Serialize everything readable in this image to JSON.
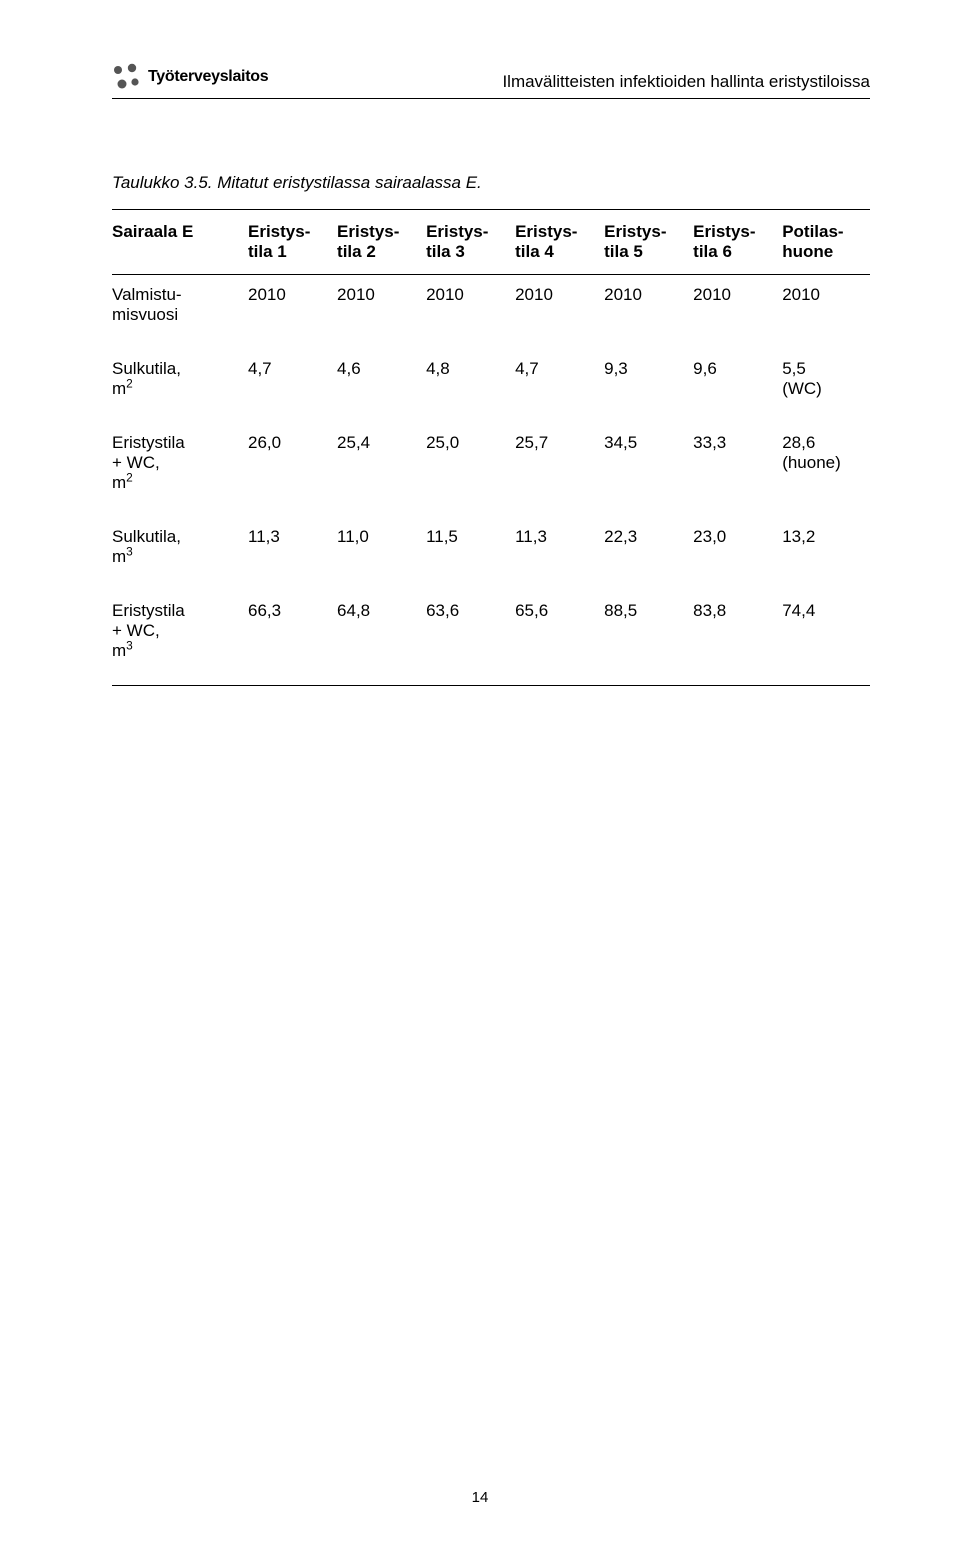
{
  "header": {
    "logo_text": "Työterveyslaitos",
    "title": "Ilmavälitteisten infektioiden hallinta eristystiloissa"
  },
  "table": {
    "caption": "Taulukko 3.5. Mitatut eristystilassa sairaalassa E.",
    "columns": [
      "Sairaala E",
      "Eristys-tila 1",
      "Eristys-tila 2",
      "Eristys-tila 3",
      "Eristys-tila 4",
      "Eristys-tila 5",
      "Eristys-tila 6",
      "Potilas-huone"
    ],
    "rows": [
      {
        "label": "Valmistu-misvuosi",
        "sup": "",
        "cells": [
          "2010",
          "2010",
          "2010",
          "2010",
          "2010",
          "2010",
          "2010"
        ]
      },
      {
        "label": "Sulkutila, m",
        "sup": "2",
        "cells": [
          "4,7",
          "4,6",
          "4,8",
          "4,7",
          "9,3",
          "9,6",
          "5,5 (WC)"
        ]
      },
      {
        "label": "Eristystila + WC, m",
        "sup": "2",
        "cells": [
          "26,0",
          "25,4",
          "25,0",
          "25,7",
          "34,5",
          "33,3",
          "28,6 (huone)"
        ]
      },
      {
        "label": "Sulkutila, m",
        "sup": "3",
        "cells": [
          "11,3",
          "11,0",
          "11,5",
          "11,3",
          "22,3",
          "23,0",
          "13,2"
        ]
      },
      {
        "label": "Eristystila + WC, m",
        "sup": "3",
        "cells": [
          "66,3",
          "64,8",
          "63,6",
          "65,6",
          "88,5",
          "83,8",
          "74,4"
        ]
      }
    ]
  },
  "page_number": "14",
  "colors": {
    "text": "#000000",
    "rule": "#000000",
    "background": "#ffffff",
    "logo": "#6b6b6b"
  }
}
